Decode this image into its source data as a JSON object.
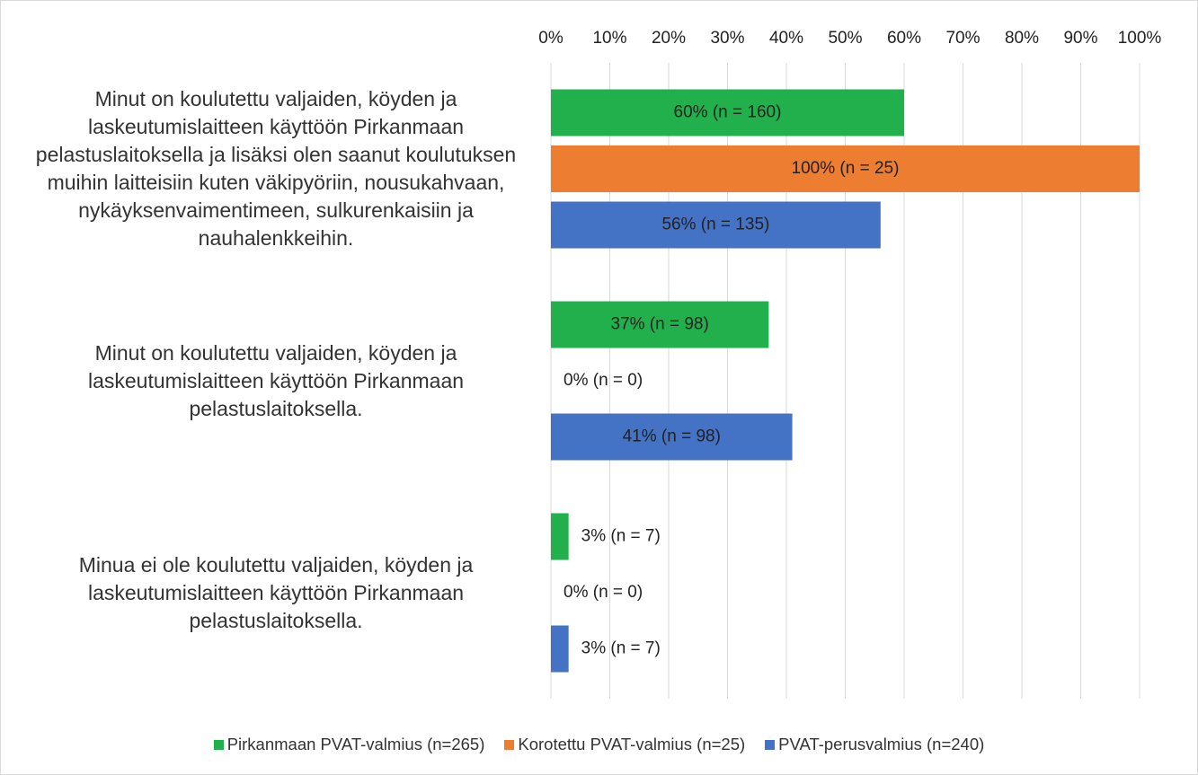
{
  "chart_data": {
    "type": "barh",
    "categories": [
      "Minut on koulutettu valjaiden, köyden ja laskeutumislaitteen käyttöön Pirkanmaan pelastuslaitoksella ja lisäksi olen saanut koulutuksen muihin laitteisiin kuten väkipyöriin, nousukahvaan, nykäyksenvaimentimeen, sulkurenkaisiin ja nauhalenkkeihin.",
      "Minut on koulutettu valjaiden, köyden ja laskeutumislaitteen käyttöön Pirkanmaan pelastuslaitoksella.",
      "Minua ei ole koulutettu valjaiden, köyden ja laskeutumislaitteen käyttöön Pirkanmaan pelastuslaitoksella."
    ],
    "series": [
      {
        "name": "Pirkanmaan PVAT-valmius (n=265)",
        "color": "#21b04b",
        "values": [
          60,
          37,
          3
        ],
        "value_labels": [
          "60% (n = 160)",
          "37% (n = 98)",
          "3% (n = 7)"
        ]
      },
      {
        "name": "Korotettu PVAT-valmius (n=25)",
        "color": "#ed7d31",
        "values": [
          100,
          0,
          0
        ],
        "value_labels": [
          "100% (n = 25)",
          "0% (n = 0)",
          "0% (n = 0)"
        ]
      },
      {
        "name": "PVAT-perusvalmius (n=240)",
        "color": "#4472c4",
        "values": [
          56,
          41,
          3
        ],
        "value_labels": [
          "56% (n = 135)",
          "41% (n = 98)",
          "3% (n = 7)"
        ]
      }
    ],
    "xlim": [
      0,
      100
    ],
    "xticks": [
      {
        "value": 0,
        "label": "0%"
      },
      {
        "value": 10,
        "label": "10%"
      },
      {
        "value": 20,
        "label": "20%"
      },
      {
        "value": 30,
        "label": "30%"
      },
      {
        "value": 40,
        "label": "40%"
      },
      {
        "value": 50,
        "label": "50%"
      },
      {
        "value": 60,
        "label": "60%"
      },
      {
        "value": 70,
        "label": "70%"
      },
      {
        "value": 80,
        "label": "80%"
      },
      {
        "value": 90,
        "label": "90%"
      },
      {
        "value": 100,
        "label": "100%"
      }
    ],
    "grid": true,
    "legend": "bottom"
  }
}
